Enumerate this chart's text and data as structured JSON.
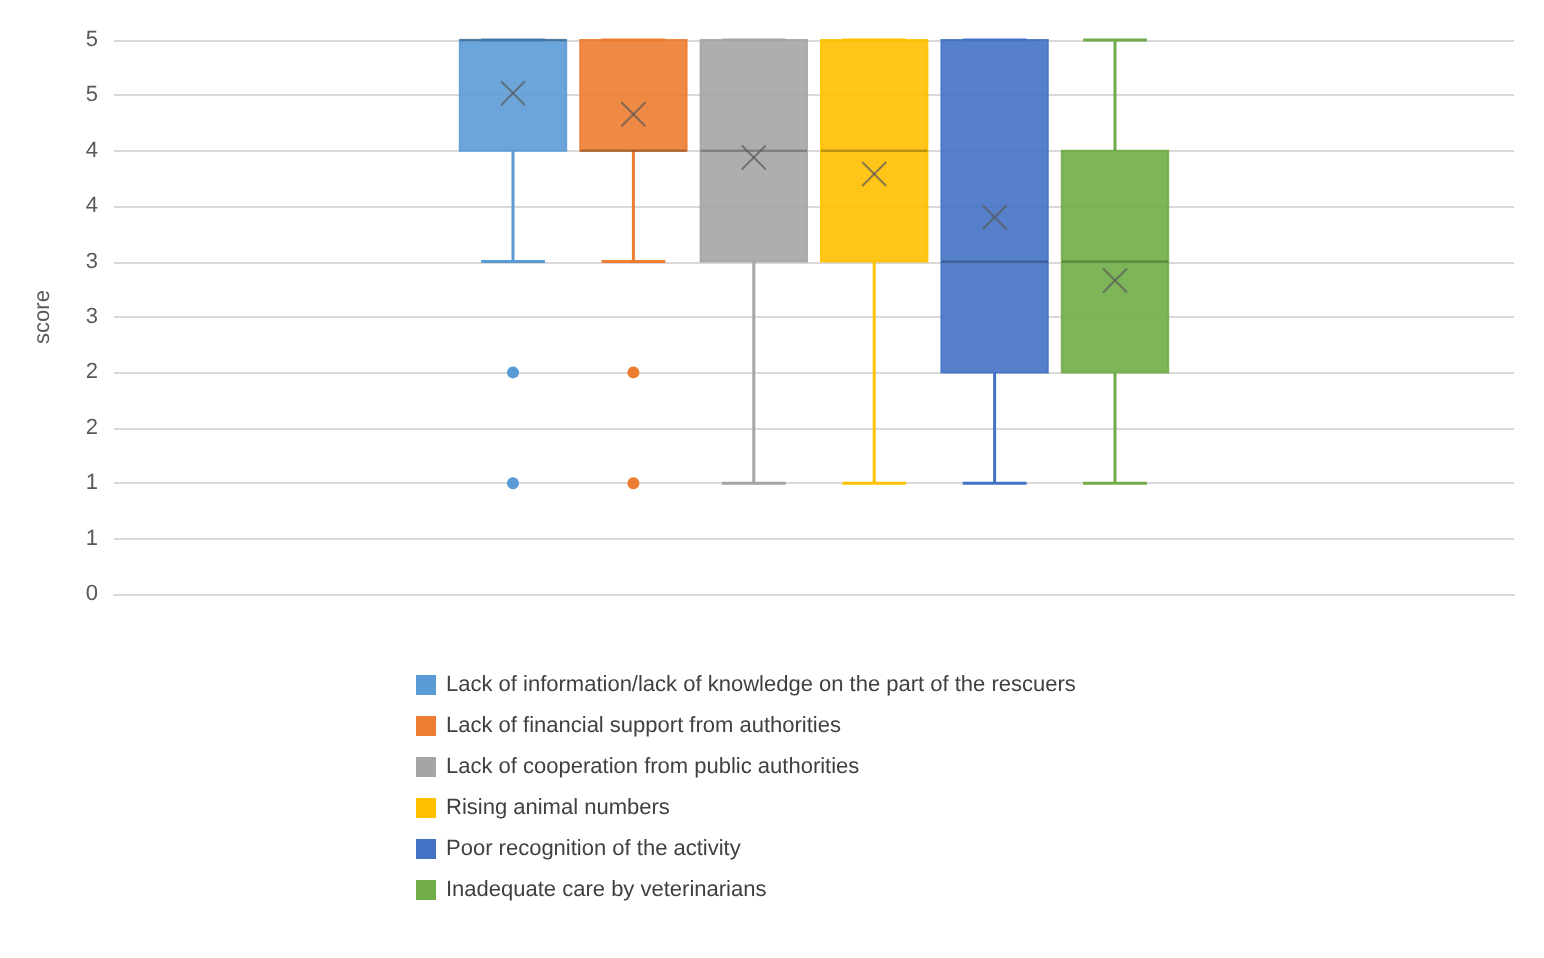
{
  "chart_data": {
    "type": "box",
    "ylabel": "score",
    "categories": [
      null
    ],
    "ylim": [
      0,
      5
    ],
    "yticks": [
      0,
      {
        "value": 0.5,
        "label": "1"
      },
      1,
      {
        "value": 1.5,
        "label": "2"
      },
      2,
      {
        "value": 2.5,
        "label": "3"
      },
      3,
      {
        "value": 3.5,
        "label": "4"
      },
      4,
      {
        "value": 4.5,
        "label": "5"
      },
      5
    ],
    "grid": "y",
    "legend": "bottom",
    "series": [
      {
        "name": "Lack of information/lack of knowledge on the part of the rescuers",
        "color": "#5b9bd5",
        "boxes": [
          {
            "low": 3,
            "q1": 4,
            "median": 5,
            "q3": 5,
            "high": 5,
            "mean": 4.52,
            "outliers": [
              2,
              1
            ]
          }
        ]
      },
      {
        "name": "Lack of financial support from authorities",
        "color": "#ed7d31",
        "boxes": [
          {
            "low": 3,
            "q1": 4,
            "median": 4,
            "q3": 5,
            "high": 5,
            "mean": 4.33,
            "outliers": [
              2,
              1
            ]
          }
        ]
      },
      {
        "name": "Lack of cooperation from public authorities",
        "color": "#a5a5a5",
        "boxes": [
          {
            "low": 1,
            "q1": 3,
            "median": 4,
            "q3": 5,
            "high": 5,
            "mean": 3.94
          }
        ]
      },
      {
        "name": "Rising animal numbers",
        "color": "#ffc000",
        "boxes": [
          {
            "low": 1,
            "q1": 3,
            "median": 4,
            "q3": 5,
            "high": 5,
            "mean": 3.79
          }
        ]
      },
      {
        "name": "Poor recognition of the activity",
        "color": "#4472c4",
        "boxes": [
          {
            "low": 1,
            "q1": 2,
            "median": 3,
            "q3": 5,
            "high": 5,
            "mean": 3.4
          }
        ]
      },
      {
        "name": "Inadequate care by veterinarians",
        "color": "#70ad47",
        "boxes": [
          {
            "low": 1,
            "q1": 2,
            "median": 3,
            "q3": 4,
            "high": 5,
            "mean": 2.83
          }
        ]
      }
    ]
  }
}
